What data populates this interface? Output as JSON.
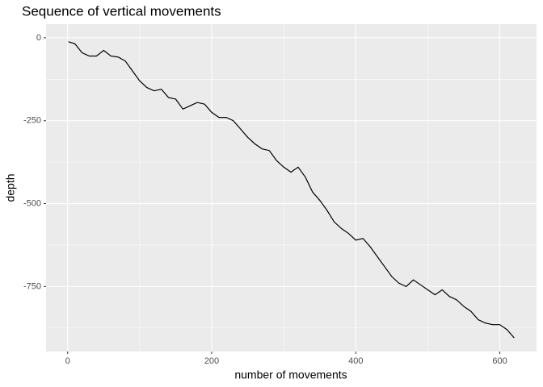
{
  "chart_data": {
    "type": "line",
    "title": "Sequence of vertical movements",
    "x_label": "number of movements",
    "y_label": "depth",
    "x": [
      1,
      10,
      20,
      30,
      40,
      50,
      60,
      70,
      80,
      90,
      100,
      110,
      120,
      130,
      140,
      150,
      160,
      170,
      180,
      190,
      200,
      210,
      220,
      230,
      240,
      250,
      260,
      270,
      280,
      290,
      300,
      310,
      320,
      330,
      340,
      350,
      360,
      370,
      380,
      390,
      400,
      410,
      420,
      430,
      440,
      450,
      460,
      470,
      480,
      490,
      500,
      510,
      520,
      530,
      540,
      550,
      560,
      570,
      580,
      590,
      600,
      610,
      620
    ],
    "series": [
      {
        "name": "depth",
        "color": "#000000",
        "values": [
          -12,
          -18,
          -45,
          -55,
          -55,
          -38,
          -55,
          -58,
          -70,
          -100,
          -130,
          -150,
          -160,
          -155,
          -180,
          -185,
          -215,
          -205,
          -195,
          -200,
          -225,
          -240,
          -240,
          -250,
          -275,
          -300,
          -320,
          -335,
          -340,
          -370,
          -390,
          -405,
          -390,
          -420,
          -465,
          -490,
          -520,
          -555,
          -575,
          -590,
          -610,
          -605,
          -630,
          -660,
          -690,
          -720,
          -740,
          -750,
          -730,
          -745,
          -760,
          -775,
          -760,
          -780,
          -790,
          -810,
          -825,
          -850,
          -860,
          -865,
          -865,
          -880,
          -905
        ]
      }
    ],
    "xlim": [
      -30,
      651
    ],
    "ylim": [
      -946,
      41
    ],
    "xticks": [
      0,
      200,
      400,
      600
    ],
    "yticks": [
      0,
      -250,
      -500,
      -750
    ],
    "grid": true,
    "panel_color": "#ebebeb"
  }
}
